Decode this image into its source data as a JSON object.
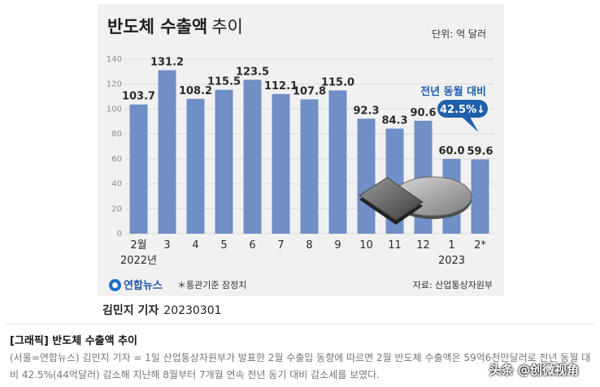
{
  "card": {
    "title_main": "반도체 수출액",
    "title_sub": "추이",
    "unit": "단위: 억 달러",
    "logo_text": "연합뉴스",
    "footnote": "＊통관기준 잠정치",
    "source": "자료: 산업통상자원부"
  },
  "chart_data": {
    "type": "bar",
    "title": "반도체 수출액 추이",
    "ylabel": "",
    "xlabel": "",
    "ylim": [
      0,
      140
    ],
    "yticks": [
      "0",
      "20",
      "40",
      "60",
      "80",
      "100",
      "120",
      "140"
    ],
    "grid": true,
    "categories": [
      "2월",
      "3",
      "4",
      "5",
      "6",
      "7",
      "8",
      "9",
      "10",
      "11",
      "12",
      "1",
      "2*"
    ],
    "year_labels": [
      {
        "at": 0,
        "text": "2022년"
      },
      {
        "at": 11,
        "text": "2023"
      }
    ],
    "values": [
      103.7,
      131.2,
      108.2,
      115.5,
      123.5,
      112.1,
      107.8,
      115.0,
      92.3,
      84.3,
      90.6,
      60.0,
      59.6
    ],
    "value_labels": [
      "103.7",
      "131.2",
      "108.2",
      "115.5",
      "123.5",
      "112.1",
      "107.8",
      "115.0",
      "92.3",
      "84.3",
      "90.6",
      "60.0",
      "59.6"
    ],
    "bar_color": "#6f8fc6",
    "annotation": {
      "label": "전년 동월 대비",
      "value": "42.5%↓",
      "color": "#1f5fad"
    }
  },
  "article": {
    "byline_name": "김민지 기자",
    "byline_date": "20230301",
    "title": "[그래픽] 반도체 수출액 추이",
    "body": "(서울=연합뉴스) 김민지 기자 = 1일 산업통상자원부가 발표한 2월 수출입 동향에 따르면 2월 반도체 수출액은 59억6천만달러로 전년 동월 대비 42.5%(44억달러) 감소해 지난해 8월부터 7개월 연속 전년 동기 대비 감소세를 보였다."
  },
  "watermark": "头条 @创微视角"
}
